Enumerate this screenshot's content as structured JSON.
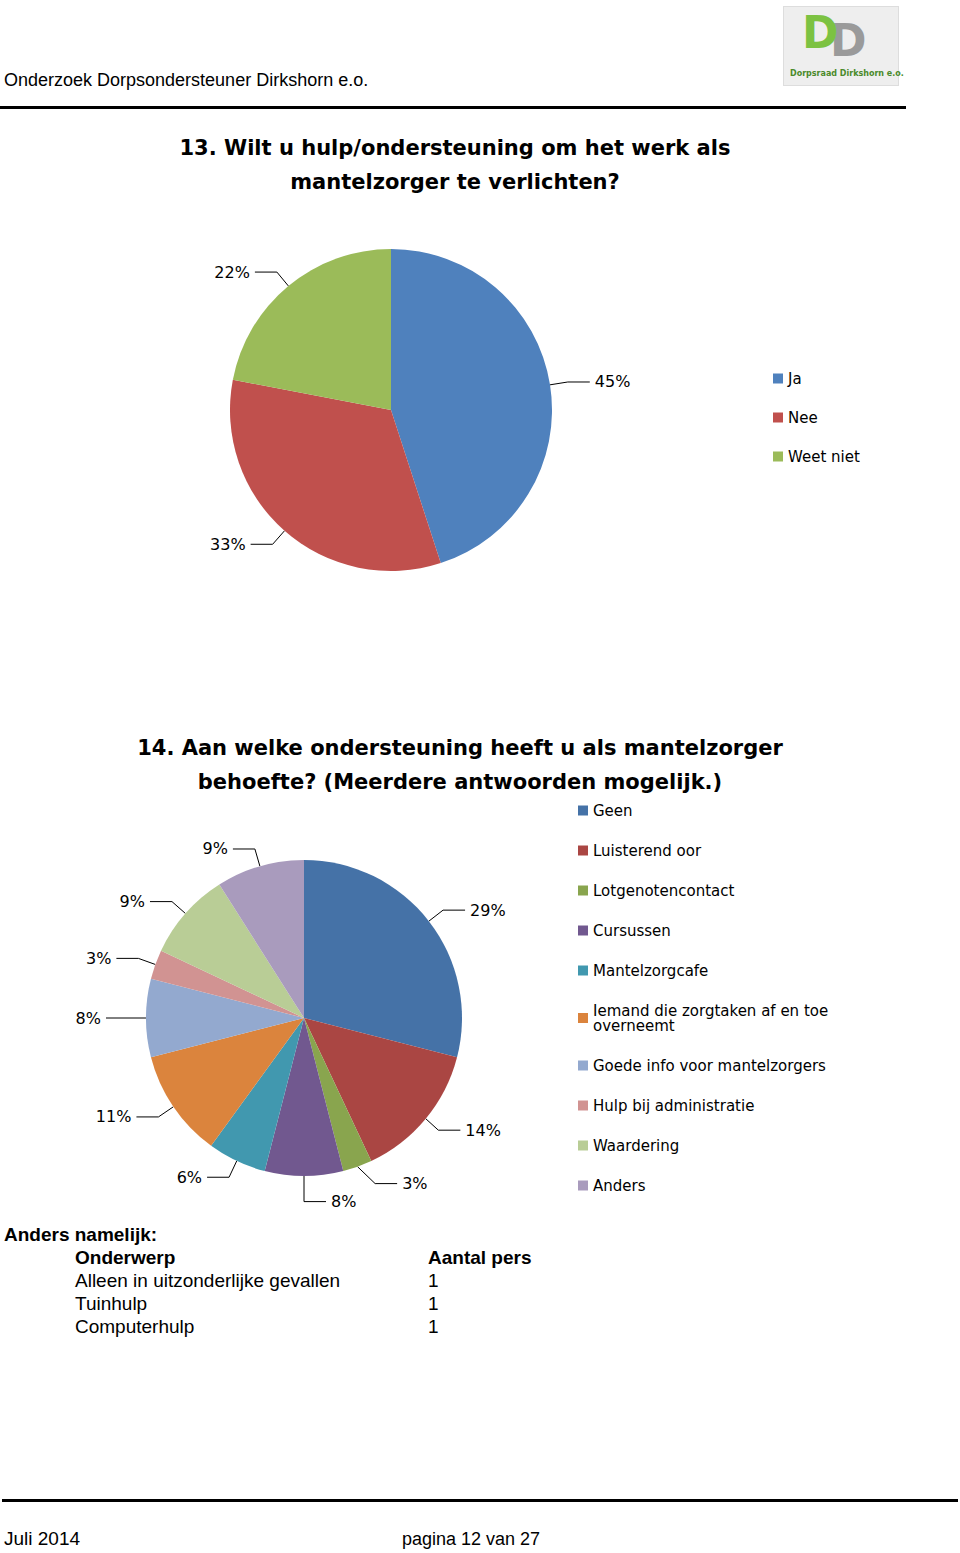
{
  "header": {
    "text": "Onderzoek Dorpsondersteuner Dirkshorn e.o.",
    "logo": {
      "letters": "DD",
      "caption": "Dorpsraad Dirkshorn e.o."
    }
  },
  "chart_data": [
    {
      "type": "pie",
      "title": "13. Wilt u hulp/ondersteuning om het werk als mantelzorger te verlichten?",
      "categories": [
        "Ja",
        "Nee",
        "Weet niet"
      ],
      "values": [
        45,
        33,
        22
      ],
      "value_labels": [
        "45%",
        "33%",
        "22%"
      ],
      "colors": [
        "#4F81BD",
        "#C0504D",
        "#9BBB59"
      ],
      "legend": "right",
      "data_labels": true
    },
    {
      "type": "pie",
      "title": "14. Aan welke ondersteuning heeft u als mantelzorger behoefte? (Meerdere antwoorden mogelijk.)",
      "categories": [
        "Geen",
        "Luisterend oor",
        "Lotgenotencontact",
        "Cursussen",
        "Mantelzorgcafe",
        "Iemand die zorgtaken af en toe overneemt",
        "Goede info voor mantelzorgers",
        "Hulp bij administratie",
        "Waardering",
        "Anders"
      ],
      "values": [
        29,
        14,
        3,
        8,
        6,
        11,
        8,
        3,
        9,
        9
      ],
      "value_labels": [
        "29%",
        "14%",
        "3%",
        "8%",
        "6%",
        "11%",
        "8%",
        "3%",
        "9%",
        "9%"
      ],
      "colors": [
        "#4572A7",
        "#AA4643",
        "#89A54E",
        "#71588F",
        "#4198AF",
        "#DB843D",
        "#93A9CF",
        "#D19392",
        "#B9CD96",
        "#A99BBD"
      ],
      "legend": "right",
      "data_labels": true
    }
  ],
  "table": {
    "title": "Anders namelijk:",
    "columns": [
      "Onderwerp",
      "Aantal pers"
    ],
    "rows": [
      [
        "Alleen in uitzonderlijke gevallen",
        1
      ],
      [
        "Tuinhulp",
        1
      ],
      [
        "Computerhulp",
        1
      ]
    ]
  },
  "footer": {
    "left": "Juli 2014",
    "center": "pagina 12 van 27"
  }
}
